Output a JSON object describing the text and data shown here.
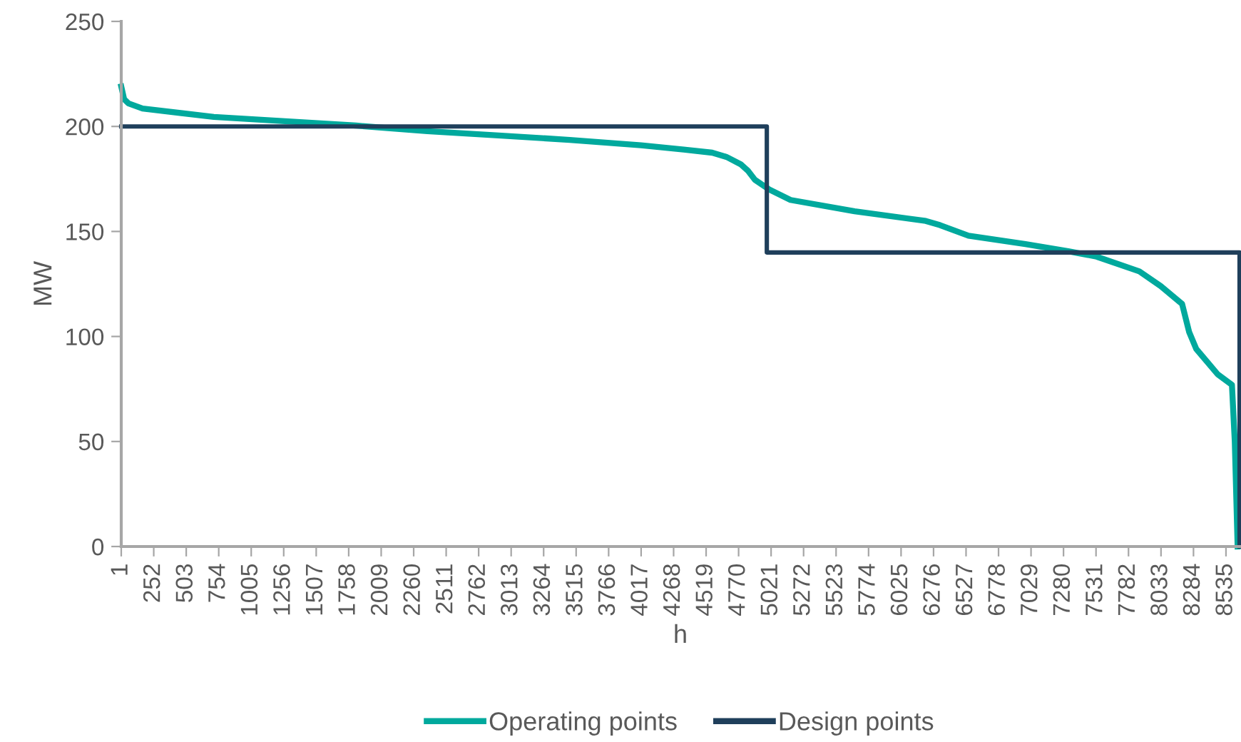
{
  "chart_data": {
    "type": "line",
    "xlabel": "h",
    "ylabel": "MW",
    "xlim": [
      1,
      8640
    ],
    "xticks": [
      1,
      252,
      503,
      754,
      1005,
      1256,
      1507,
      1758,
      2009,
      2260,
      2511,
      2762,
      3013,
      3264,
      3515,
      3766,
      4017,
      4268,
      4519,
      4770,
      5021,
      5272,
      5523,
      5774,
      6025,
      6276,
      6527,
      6778,
      7029,
      7280,
      7531,
      7782,
      8033,
      8284,
      8535
    ],
    "ylim": [
      0,
      250
    ],
    "yticks": [
      0,
      50,
      100,
      150,
      200,
      250
    ],
    "grid": false,
    "legend": "bottom",
    "marker": "none",
    "line_style": "solid",
    "series": [
      {
        "name": "Operating points",
        "color": "#00a99d",
        "x": [
          1,
          23,
          56,
          166,
          716,
          1266,
          1816,
          2366,
          2916,
          3466,
          4016,
          4346,
          4566,
          4676,
          4786,
          4841,
          4896,
          5006,
          5171,
          5666,
          6216,
          6326,
          6546,
          6986,
          7316,
          7536,
          7866,
          8031,
          8196,
          8251,
          8306,
          8471,
          8581,
          8603,
          8625
        ],
        "values": [
          219,
          213,
          211,
          208.5,
          204.5,
          202.5,
          200.4,
          197.7,
          195.7,
          193.6,
          191,
          189,
          187.5,
          185.5,
          182,
          179,
          174.6,
          170,
          165,
          159.6,
          155,
          153,
          148,
          144,
          140.6,
          138,
          131,
          124,
          115.5,
          102,
          94,
          82,
          77,
          50,
          0
        ]
      },
      {
        "name": "Design points",
        "color": "#1f3f5b",
        "x": [
          1,
          4988,
          4988,
          8640,
          8640
        ],
        "values": [
          200,
          200,
          140,
          140,
          0
        ]
      }
    ]
  }
}
